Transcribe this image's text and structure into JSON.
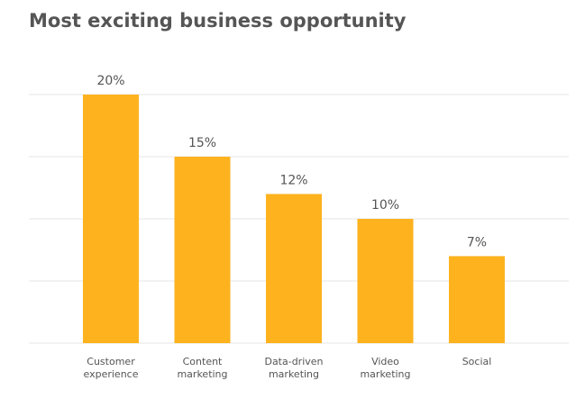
{
  "chart_data": {
    "type": "bar",
    "title": "Most exciting business opportunity",
    "categories": [
      "Customer experience",
      "Content marketing",
      "Data-driven marketing",
      "Video marketing",
      "Social"
    ],
    "values": [
      20,
      15,
      12,
      10,
      7
    ],
    "value_labels": [
      "20%",
      "15%",
      "12%",
      "10%",
      "7%"
    ],
    "color": "#fdb21e",
    "ylim": [
      0,
      20
    ],
    "yticks": [
      0,
      5,
      10,
      15,
      20
    ],
    "grid": true
  }
}
